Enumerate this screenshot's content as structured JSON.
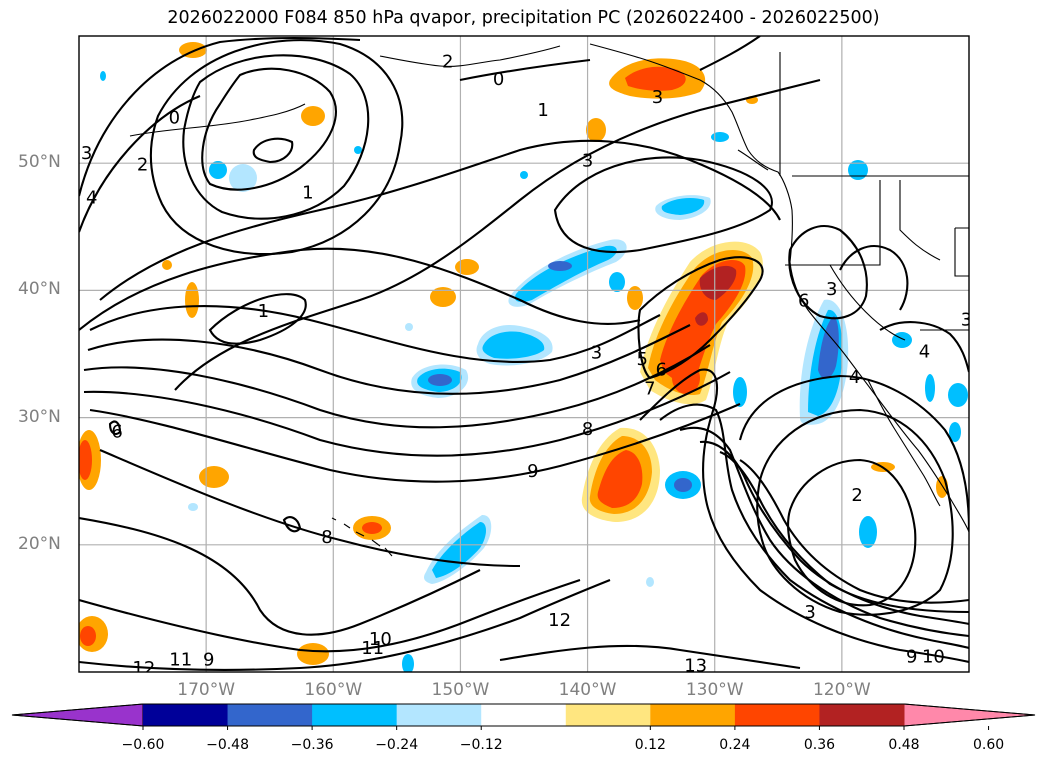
{
  "title": "2026022000 F084 850 hPa qvapor, precipitation PC (2026022400 - 2026022500)",
  "map": {
    "lat_labels": [
      {
        "text": "50°N",
        "lat": 50
      },
      {
        "text": "40°N",
        "lat": 40
      },
      {
        "text": "30°N",
        "lat": 30
      },
      {
        "text": "20°N",
        "lat": 20
      }
    ],
    "lon_labels": [
      {
        "text": "170°W",
        "lon": -170
      },
      {
        "text": "160°W",
        "lon": -160
      },
      {
        "text": "150°W",
        "lon": -150
      },
      {
        "text": "140°W",
        "lon": -140
      },
      {
        "text": "130°W",
        "lon": -130
      },
      {
        "text": "120°W",
        "lon": -120
      }
    ],
    "lon_range": [
      -180,
      -110
    ],
    "lat_range": [
      10,
      60
    ],
    "grid": true,
    "contour_labels": [
      {
        "text": "2",
        "lon": -151,
        "lat": 58
      },
      {
        "text": "0",
        "lon": -147,
        "lat": 56.6
      },
      {
        "text": "1",
        "lon": -143.5,
        "lat": 54.2
      },
      {
        "text": "3",
        "lon": -134.5,
        "lat": 55.2
      },
      {
        "text": "0",
        "lon": -172.5,
        "lat": 53.6
      },
      {
        "text": "2",
        "lon": -175,
        "lat": 49.9
      },
      {
        "text": "3",
        "lon": -179.4,
        "lat": 50.8
      },
      {
        "text": "4",
        "lon": -179,
        "lat": 47.3
      },
      {
        "text": "1",
        "lon": -162,
        "lat": 47.7
      },
      {
        "text": "3",
        "lon": -140,
        "lat": 50.2
      },
      {
        "text": "1",
        "lon": -165.5,
        "lat": 38.4
      },
      {
        "text": "3",
        "lon": -139.3,
        "lat": 35.1
      },
      {
        "text": "5",
        "lon": -135.7,
        "lat": 34.6
      },
      {
        "text": "6",
        "lon": -134.2,
        "lat": 33.8
      },
      {
        "text": "7",
        "lon": -135.1,
        "lat": 32.3
      },
      {
        "text": "8",
        "lon": -140,
        "lat": 29.1
      },
      {
        "text": "9",
        "lon": -144.3,
        "lat": 25.8
      },
      {
        "text": "6",
        "lon": -123,
        "lat": 39.2
      },
      {
        "text": "3",
        "lon": -120.8,
        "lat": 40.1
      },
      {
        "text": "3",
        "lon": -110.2,
        "lat": 37.7
      },
      {
        "text": "4",
        "lon": -113.5,
        "lat": 35.2
      },
      {
        "text": "4",
        "lon": -119,
        "lat": 33.2
      },
      {
        "text": "6",
        "lon": -177,
        "lat": 28.9
      },
      {
        "text": "8",
        "lon": -160.5,
        "lat": 20.6
      },
      {
        "text": "2",
        "lon": -118.8,
        "lat": 23.9
      },
      {
        "text": "3",
        "lon": -122.5,
        "lat": 14.7
      },
      {
        "text": "12",
        "lon": -142.2,
        "lat": 14.1
      },
      {
        "text": "10",
        "lon": -156.3,
        "lat": 12.6
      },
      {
        "text": "11",
        "lon": -156.9,
        "lat": 11.9
      },
      {
        "text": "9",
        "lon": -169.8,
        "lat": 11
      },
      {
        "text": "11",
        "lon": -172,
        "lat": 11
      },
      {
        "text": "12",
        "lon": -174.9,
        "lat": 10.3
      },
      {
        "text": "13",
        "lon": -131.5,
        "lat": 10.5
      },
      {
        "text": "9",
        "lon": -114.5,
        "lat": 11.2
      },
      {
        "text": "10",
        "lon": -112.8,
        "lat": 11.2
      }
    ]
  },
  "colorbar": {
    "ticks": [
      "−0.60",
      "−0.48",
      "−0.36",
      "−0.24",
      "−0.12",
      "0.12",
      "0.24",
      "0.36",
      "0.48",
      "0.60"
    ],
    "colors": [
      "#9933cc",
      "#000099",
      "#3366cc",
      "#00bfff",
      "#b3e6ff",
      "#ffffff",
      "#ffe680",
      "#ffa500",
      "#ff4500",
      "#b22222",
      "#ff88aa"
    ]
  },
  "palette": {
    "neg1": "#b3e6ff",
    "neg2": "#00bfff",
    "neg3": "#3366cc",
    "neg4": "#000099",
    "pos1": "#ffe680",
    "pos2": "#ffa500",
    "pos3": "#ff4500",
    "pos4": "#b22222"
  }
}
